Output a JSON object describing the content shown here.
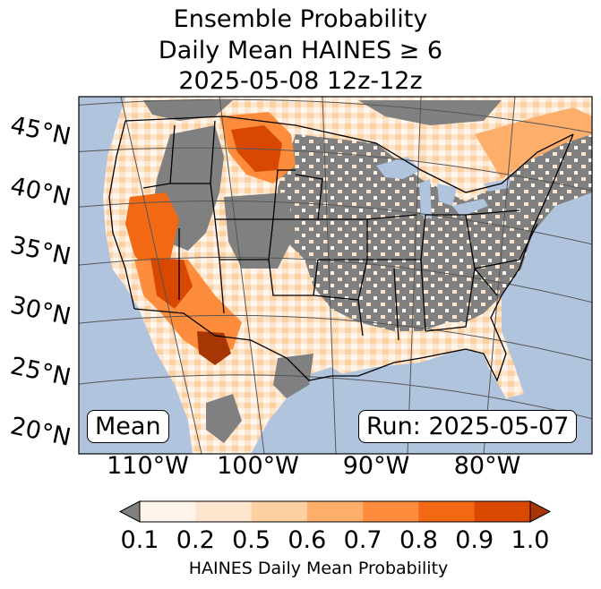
{
  "title": {
    "line1": "Ensemble Probability",
    "line2": "Daily Mean HAINES ≥ 6",
    "line3": "2025-05-08 12z-12z"
  },
  "map": {
    "type": "probability map",
    "region": "CONUS",
    "lat_labels": [
      "45°N",
      "40°N",
      "35°N",
      "30°N",
      "25°N",
      "20°N"
    ],
    "lon_labels": [
      "110°W",
      "100°W",
      "90°W",
      "80°W"
    ],
    "mean_label": "Mean",
    "run_label": "Run: 2025-05-07",
    "colors": {
      "ocean": "#b0c4de",
      "below_threshold": "#808080",
      "grid": "#555555"
    }
  },
  "colorbar": {
    "ticks": [
      "0.1",
      "0.2",
      "0.5",
      "0.6",
      "0.7",
      "0.8",
      "0.9",
      "1.0"
    ],
    "colors": [
      "#fff5eb",
      "#fee6ce",
      "#fdd0a2",
      "#fdae6b",
      "#fd8d3c",
      "#f16913",
      "#d94801"
    ],
    "under_color": "#808080",
    "over_color": "#a63603",
    "label": "HAINES Daily Mean Probability"
  }
}
